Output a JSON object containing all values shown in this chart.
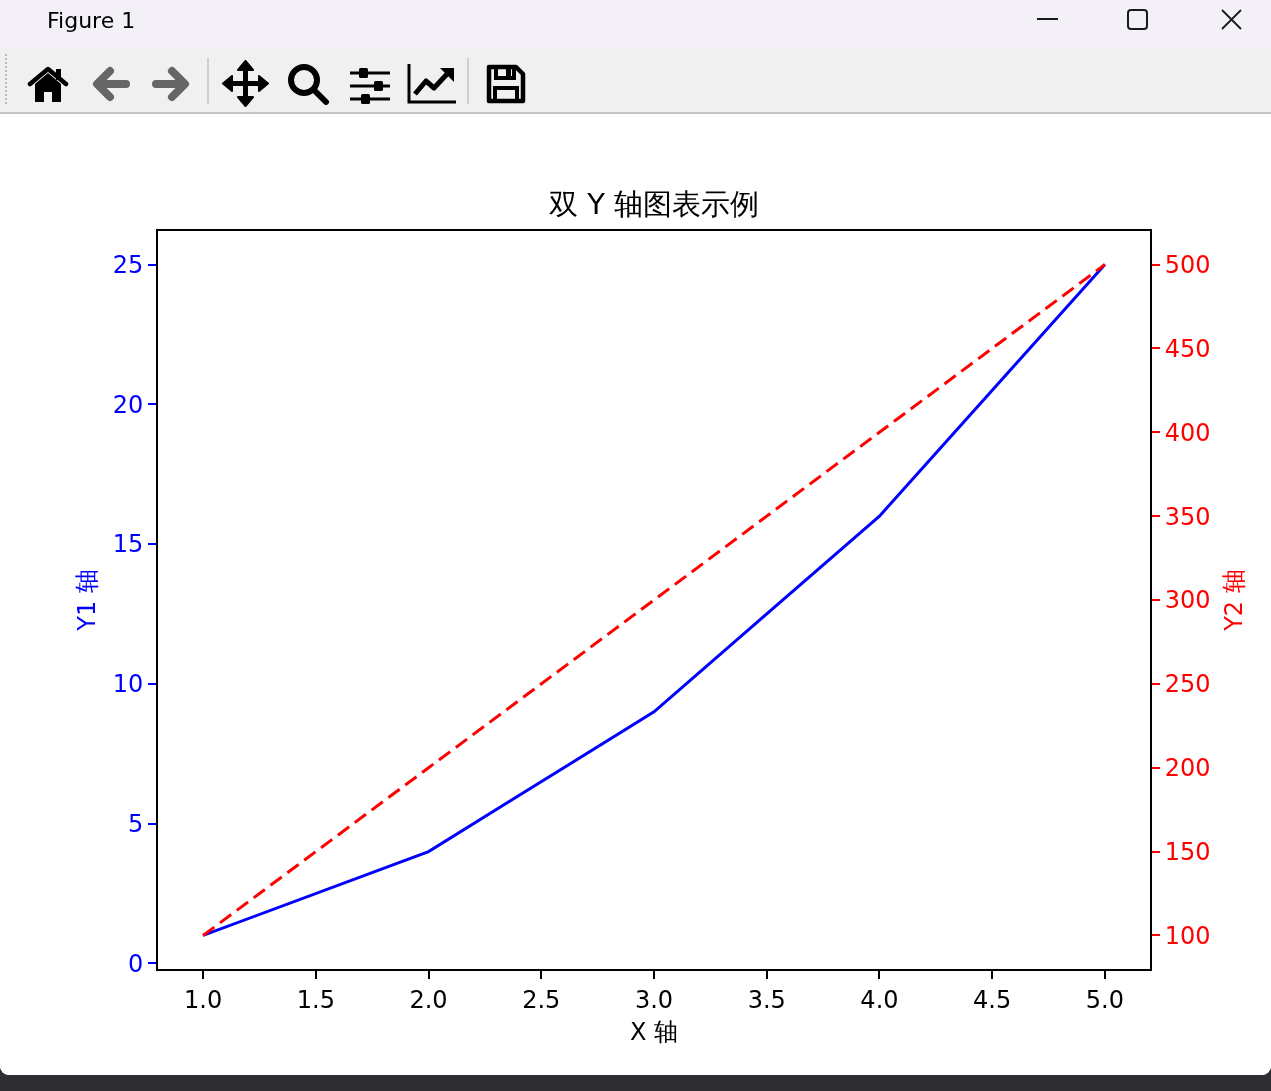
{
  "chart_data": {
    "type": "line",
    "title": "双 Y 轴图表示例",
    "xlabel": "X 轴",
    "ylabel": "Y1 轴",
    "y2label": "Y2 轴",
    "annotations": [
      "Figure 1"
    ],
    "x": [
      1,
      2,
      3,
      4,
      5
    ],
    "series": [
      {
        "color": "#0000ff",
        "values": [
          1,
          4,
          9,
          16,
          25
        ]
      },
      {
        "color": "#ff0000",
        "values": [
          100,
          200,
          300,
          400,
          500
        ],
        "axis": "y2",
        "line_style": "dashed"
      }
    ],
    "line_style": "solid",
    "xlim": [
      0.8,
      5.2
    ],
    "xticks": [
      {
        "value": 1,
        "label": "1.0"
      },
      {
        "value": 1.5,
        "label": "1.5"
      },
      {
        "value": 2,
        "label": "2.0"
      },
      {
        "value": 2.5,
        "label": "2.5"
      },
      {
        "value": 3,
        "label": "3.0"
      },
      {
        "value": 3.5,
        "label": "3.5"
      },
      {
        "value": 4,
        "label": "4.0"
      },
      {
        "value": 4.5,
        "label": "4.5"
      },
      {
        "value": 5,
        "label": "5.0"
      }
    ],
    "ylim": [
      -0.2,
      26.2
    ],
    "yticks": [
      0,
      5,
      10,
      15,
      20,
      25
    ],
    "y2lim": [
      80,
      520
    ],
    "y2ticks": [
      100,
      150,
      200,
      250,
      300,
      350,
      400,
      450,
      500
    ]
  }
}
